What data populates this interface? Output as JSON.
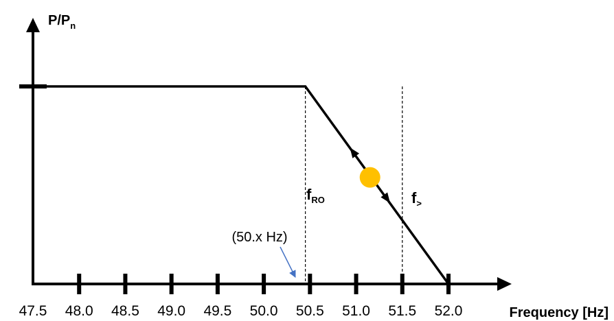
{
  "chart_data": {
    "type": "line",
    "xlabel": "Frequency [Hz]",
    "ylabel": {
      "main": "P/P",
      "sub": "n"
    },
    "x_ticks": [
      "47.5",
      "48.0",
      "48.5",
      "49.0",
      "49.5",
      "50.0",
      "50.5",
      "51.0",
      "51.5",
      "52.0"
    ],
    "xlim": [
      47.5,
      52.0
    ],
    "ylim": [
      0,
      1
    ],
    "series": [
      {
        "x": [
          47.5,
          50.45,
          52.0
        ],
        "y": [
          1.0,
          1.0,
          0.0
        ]
      }
    ],
    "markers": [
      {
        "id": "fro",
        "label": {
          "main": "f",
          "sub": "RO"
        },
        "x": 50.45
      },
      {
        "id": "fgt",
        "label": {
          "main": "f",
          "sub": ">"
        },
        "x": 51.5
      }
    ],
    "operating_point": {
      "x": 51.15,
      "y": 0.55,
      "color": "#FFC000"
    },
    "annotation": {
      "text": "(50.x Hz)",
      "arrow_color": "#4472C4",
      "target_x": 50.4
    }
  }
}
